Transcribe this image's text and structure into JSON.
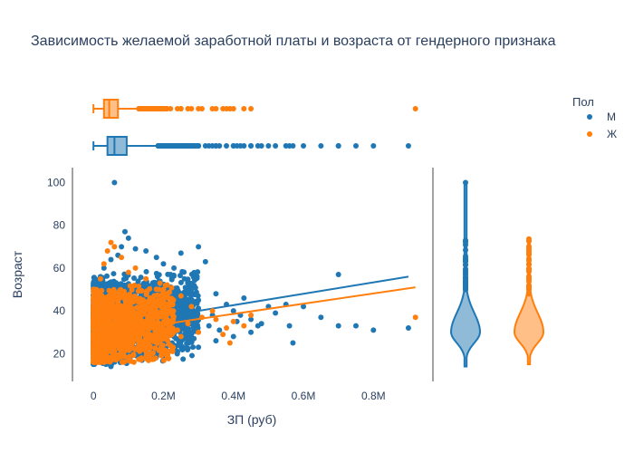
{
  "chart_data": {
    "type": "scatter",
    "title": "Зависимость желаемой заработной платы и возраста от гендерного признака",
    "xlabel": "ЗП (руб)",
    "ylabel": "Возраст",
    "xlim": [
      -60000,
      970000
    ],
    "ylim": [
      7,
      107
    ],
    "x_ticks": [
      0,
      200000,
      400000,
      600000,
      800000
    ],
    "x_tick_labels": [
      "0",
      "0.2M",
      "0.4M",
      "0.6M",
      "0.8M"
    ],
    "y_ticks": [
      20,
      40,
      60,
      80,
      100
    ],
    "y_tick_labels": [
      "20",
      "40",
      "60",
      "80",
      "100"
    ],
    "legend": {
      "title": "Пол",
      "placement": "top-right",
      "entries": [
        {
          "label": "М",
          "color": "#1f77b4"
        },
        {
          "label": "Ж",
          "color": "#ff7f0e"
        }
      ]
    },
    "series": [
      {
        "name": "М",
        "color": "#1f77b4",
        "trend": [
          [
            0,
            32
          ],
          [
            900000,
            56
          ]
        ],
        "box_salary": {
          "min": 0,
          "q1": 40000,
          "median": 60000,
          "q3": 95000,
          "upper_fence": 185000
        },
        "violin_age": {
          "min": 14,
          "max": 100,
          "peak": 30
        },
        "points": [
          [
            60000,
            100
          ],
          [
            300000,
            70
          ],
          [
            250000,
            67
          ],
          [
            700000,
            57
          ],
          [
            550000,
            43
          ],
          [
            600000,
            42
          ],
          [
            650000,
            37
          ],
          [
            800000,
            31
          ],
          [
            900000,
            32
          ],
          [
            700000,
            33
          ],
          [
            750000,
            33
          ],
          [
            560000,
            33
          ],
          [
            570000,
            25
          ],
          [
            500000,
            42
          ],
          [
            480000,
            34
          ],
          [
            450000,
            36
          ],
          [
            420000,
            38
          ],
          [
            400000,
            40
          ],
          [
            380000,
            43
          ],
          [
            350000,
            48
          ],
          [
            330000,
            33
          ],
          [
            300000,
            45
          ],
          [
            280000,
            50
          ],
          [
            260000,
            55
          ],
          [
            250000,
            27
          ],
          [
            230000,
            60
          ],
          [
            200000,
            62
          ],
          [
            180000,
            65
          ],
          [
            150000,
            68
          ],
          [
            120000,
            69
          ],
          [
            100000,
            74
          ],
          [
            90000,
            77
          ],
          [
            80000,
            70
          ],
          [
            70000,
            66
          ],
          [
            50000,
            64
          ],
          [
            30000,
            60
          ],
          [
            20000,
            56
          ],
          [
            10000,
            50
          ],
          [
            5000,
            45
          ],
          [
            0,
            38
          ],
          [
            0,
            15
          ],
          [
            10000,
            17
          ],
          [
            30000,
            16
          ],
          [
            50000,
            14
          ],
          [
            80000,
            18
          ],
          [
            100000,
            20
          ],
          [
            150000,
            21
          ],
          [
            200000,
            22
          ],
          [
            250000,
            24
          ],
          [
            300000,
            23
          ],
          [
            350000,
            26
          ],
          [
            400000,
            28
          ],
          [
            450000,
            30
          ],
          [
            320000,
            63
          ],
          [
            220000,
            57
          ],
          [
            180000,
            47
          ],
          [
            140000,
            52
          ],
          [
            160000,
            44
          ],
          [
            240000,
            40
          ],
          [
            260000,
            35
          ],
          [
            340000,
            38
          ],
          [
            360000,
            31
          ],
          [
            410000,
            35
          ],
          [
            430000,
            46
          ],
          [
            470000,
            33
          ],
          [
            520000,
            39
          ]
        ]
      },
      {
        "name": "Ж",
        "color": "#ff7f0e",
        "trend": [
          [
            0,
            29
          ],
          [
            920000,
            51
          ]
        ],
        "box_salary": {
          "min": 0,
          "q1": 30000,
          "median": 45000,
          "q3": 70000,
          "upper_fence": 130000
        },
        "violin_age": {
          "min": 15,
          "max": 74,
          "peak": 30
        },
        "points": [
          [
            920000,
            37
          ],
          [
            450000,
            38
          ],
          [
            400000,
            35
          ],
          [
            380000,
            32
          ],
          [
            350000,
            36
          ],
          [
            300000,
            30
          ],
          [
            280000,
            42
          ],
          [
            250000,
            28
          ],
          [
            220000,
            45
          ],
          [
            200000,
            50
          ],
          [
            180000,
            33
          ],
          [
            150000,
            55
          ],
          [
            120000,
            60
          ],
          [
            100000,
            58
          ],
          [
            80000,
            65
          ],
          [
            60000,
            70
          ],
          [
            50000,
            72
          ],
          [
            40000,
            68
          ],
          [
            30000,
            62
          ],
          [
            20000,
            55
          ],
          [
            10000,
            48
          ],
          [
            5000,
            40
          ],
          [
            0,
            30
          ],
          [
            0,
            20
          ],
          [
            10000,
            18
          ],
          [
            20000,
            16
          ],
          [
            40000,
            17
          ],
          [
            60000,
            19
          ],
          [
            80000,
            21
          ],
          [
            100000,
            22
          ],
          [
            130000,
            24
          ],
          [
            170000,
            26
          ],
          [
            210000,
            27
          ],
          [
            240000,
            31
          ],
          [
            270000,
            34
          ],
          [
            310000,
            37
          ],
          [
            340000,
            40
          ],
          [
            370000,
            29
          ],
          [
            390000,
            25
          ],
          [
            430000,
            33
          ],
          [
            250000,
            47
          ],
          [
            190000,
            53
          ],
          [
            160000,
            43
          ],
          [
            140000,
            39
          ],
          [
            110000,
            36
          ],
          [
            70000,
            44
          ]
        ]
      }
    ]
  }
}
